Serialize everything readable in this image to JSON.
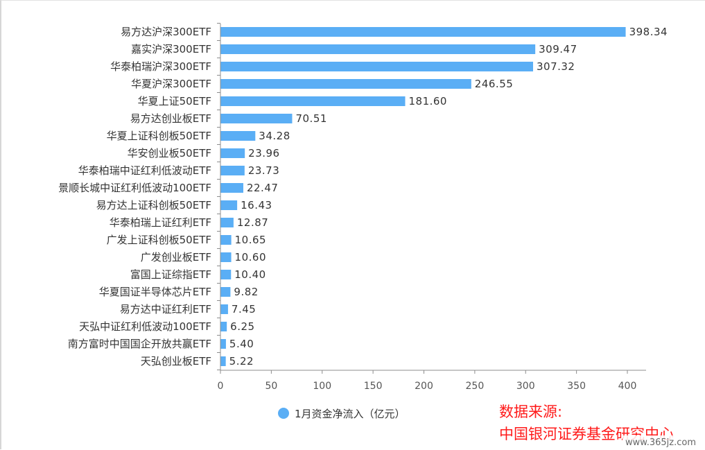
{
  "chart_data": {
    "type": "bar",
    "orientation": "horizontal",
    "categories": [
      "易方达沪深300ETF",
      "嘉实沪深300ETF",
      "华泰柏瑞沪深300ETF",
      "华夏沪深300ETF",
      "华夏上证50ETF",
      "易方达创业板ETF",
      "华夏上证科创板50ETF",
      "华安创业板50ETF",
      "华泰柏瑞中证红利低波动ETF",
      "景顺长城中证红利低波动100ETF",
      "易方达上证科创板50ETF",
      "华泰柏瑞上证红利ETF",
      "广发上证科创板50ETF",
      "广发创业板ETF",
      "富国上证综指ETF",
      "华夏国证半导体芯片ETF",
      "易方达中证红利ETF",
      "天弘中证红利低波动100ETF",
      "南方富时中国国企开放共赢ETF",
      "天弘创业板ETF"
    ],
    "series": [
      {
        "name": "1月资金净流入（亿元）",
        "values": [
          398.34,
          309.47,
          307.32,
          246.55,
          181.6,
          70.51,
          34.28,
          23.96,
          23.73,
          22.47,
          16.43,
          12.87,
          10.65,
          10.6,
          10.4,
          9.82,
          7.45,
          6.25,
          5.4,
          5.22
        ],
        "value_labels": [
          "398.34",
          "309.47",
          "307.32",
          "246.55",
          "181.60",
          "70.51",
          "34.28",
          "23.96",
          "23.73",
          "22.47",
          "16.43",
          "12.87",
          "10.65",
          "10.60",
          "10.40",
          "9.82",
          "7.45",
          "6.25",
          "5.40",
          "5.22"
        ],
        "color": "#5aaef5"
      }
    ],
    "x_ticks": [
      "0",
      "50",
      "100",
      "150",
      "200",
      "250",
      "300",
      "350",
      "400"
    ],
    "xlim": [
      0,
      400
    ],
    "grid": false,
    "legend_position": "bottom"
  },
  "source_note": {
    "line1": "数据来源:",
    "line2": "中国银河证券基金研究中心"
  },
  "watermark": "www.365jz.com",
  "colors": {
    "bar": "#5aaef5",
    "source": "#ff1a1a",
    "axis": "#8c8c8c"
  }
}
